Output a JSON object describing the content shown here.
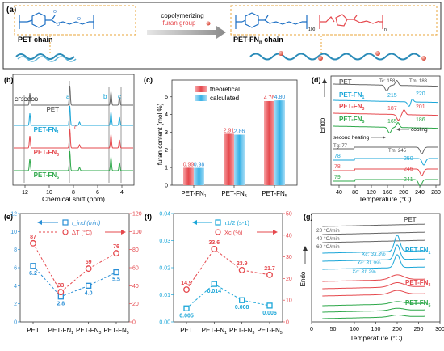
{
  "figure": {
    "colors": {
      "pet": "#666666",
      "fn1": "#1aa6d8",
      "fn3": "#e5484d",
      "fn5": "#2ea84a",
      "blue": "#2a8fd6",
      "red": "#e5484d",
      "teal": "#1aa6d8",
      "orange": "#e08a1e"
    },
    "panel_a": {
      "label": "(a)",
      "pet_chain": "PET chain",
      "arrow_line1": "copolymerizing",
      "arrow_line2": "furan group",
      "petfn_chain_main": "PET-FN",
      "petfn_chain_sub": "n",
      "petfn_chain_tail": " chain",
      "sub_100": "100",
      "sub_n": "n"
    },
    "panel_b": {
      "label": "(b)",
      "solvent": "CF3COOD",
      "xlabel": "Chemical shift (ppm)",
      "ticks": [
        "12",
        "10",
        "8",
        "6",
        "4"
      ],
      "peaks": [
        "a",
        "b",
        "c",
        "d"
      ],
      "names": [
        {
          "base": "PET",
          "sub": ""
        },
        {
          "base": "PET-FN",
          "sub": "1"
        },
        {
          "base": "PET-FN",
          "sub": "3"
        },
        {
          "base": "PET-FN",
          "sub": "5"
        }
      ]
    },
    "panel_c": {
      "label": "(c)",
      "ylabel": "furan content (mol %)",
      "yticks": [
        "0",
        "1",
        "2",
        "3",
        "4",
        "5"
      ],
      "legend": [
        "theoretical",
        "calculated"
      ],
      "categories": [
        {
          "base": "PET-FN",
          "sub": "1"
        },
        {
          "base": "PET-FN",
          "sub": "3"
        },
        {
          "base": "PET-FN",
          "sub": "5"
        }
      ],
      "theoretical": [
        0.99,
        2.91,
        4.76
      ],
      "calculated": [
        0.98,
        2.86,
        4.8
      ]
    },
    "panel_d": {
      "label": "(d)",
      "ylabel": "Endo",
      "xlabel": "Temperature (°C)",
      "xticks": [
        "40",
        "80",
        "120",
        "160",
        "200",
        "240",
        "280"
      ],
      "cooling": "cooling",
      "heating": "second heating",
      "tc_label": "Tc: 158",
      "tm_label": "Tm: 183",
      "tg_label": "Tg: 77",
      "tm2_label": "Tm: 245",
      "names": [
        {
          "base": "PET",
          "sub": ""
        },
        {
          "base": "PET-FN",
          "sub": "1"
        },
        {
          "base": "PET-FN",
          "sub": "3"
        },
        {
          "base": "PET-FN",
          "sub": "5"
        }
      ],
      "cool_vals": [
        [
          "215",
          "220"
        ],
        [
          "187",
          "201"
        ],
        [
          "165",
          "186"
        ]
      ],
      "heat_tg": [
        "78",
        "78",
        "79"
      ],
      "heat_tm": [
        "250",
        "245",
        "241"
      ]
    },
    "panel_e": {
      "label": "(e)",
      "legend1": "t_ind (min)",
      "legend2": "ΔT (°C)",
      "yticks_left": [
        "0",
        "2",
        "4",
        "6",
        "8",
        "10",
        "12"
      ],
      "yticks_right": [
        "0",
        "20",
        "40",
        "60",
        "80",
        "100",
        "120"
      ],
      "categories": [
        {
          "base": "PET",
          "sub": ""
        },
        {
          "base": "PET-FN",
          "sub": "1"
        },
        {
          "base": "PET-FN",
          "sub": "3"
        },
        {
          "base": "PET-FN",
          "sub": "5"
        }
      ],
      "t_ind": [
        6.2,
        2.8,
        4.0,
        5.5
      ],
      "t_ind_labels": [
        "6.2",
        "2.8",
        "4.0",
        "5.5"
      ],
      "delta_t": [
        87,
        33,
        59,
        76
      ],
      "delta_t_labels": [
        "87",
        "33",
        "59",
        "76"
      ]
    },
    "panel_f": {
      "label": "(f)",
      "legend1": "τ1/2 (s-1)",
      "legend2": "Xc (%)",
      "yticks_left": [
        "0.00",
        "0.01",
        "0.02",
        "0.03",
        "0.04"
      ],
      "yticks_right": [
        "0",
        "10",
        "20",
        "30",
        "40",
        "50"
      ],
      "categories": [
        {
          "base": "PET",
          "sub": ""
        },
        {
          "base": "PET-FN",
          "sub": "1"
        },
        {
          "base": "PET-FN",
          "sub": "3"
        },
        {
          "base": "PET-FN",
          "sub": "5"
        }
      ],
      "tau": [
        0.005,
        0.014,
        0.008,
        0.006
      ],
      "tau_labels": [
        "0.005",
        "0.014",
        "0.008",
        "0.006"
      ],
      "xc": [
        14.9,
        33.6,
        23.9,
        21.7
      ],
      "xc_labels": [
        "14.9",
        "33.6",
        "23.9",
        "21.7"
      ]
    },
    "panel_g": {
      "label": "(g)",
      "ylabel": "Endo",
      "xlabel": "Temperature (°C)",
      "xticks": [
        "0",
        "50",
        "100",
        "150",
        "200",
        "250",
        "300"
      ],
      "rates": [
        "20 °C/min",
        "40 °C/min",
        "60 °C/min"
      ],
      "xc_vals": [
        "Xc: 33.3%",
        "Xc: 31.9%",
        "Xc: 31.2%"
      ],
      "names": [
        {
          "base": "PET",
          "sub": ""
        },
        {
          "base": "PET-FN",
          "sub": "1"
        },
        {
          "base": "PET-FN",
          "sub": "3"
        },
        {
          "base": "PET-FN",
          "sub": "5"
        }
      ]
    }
  }
}
